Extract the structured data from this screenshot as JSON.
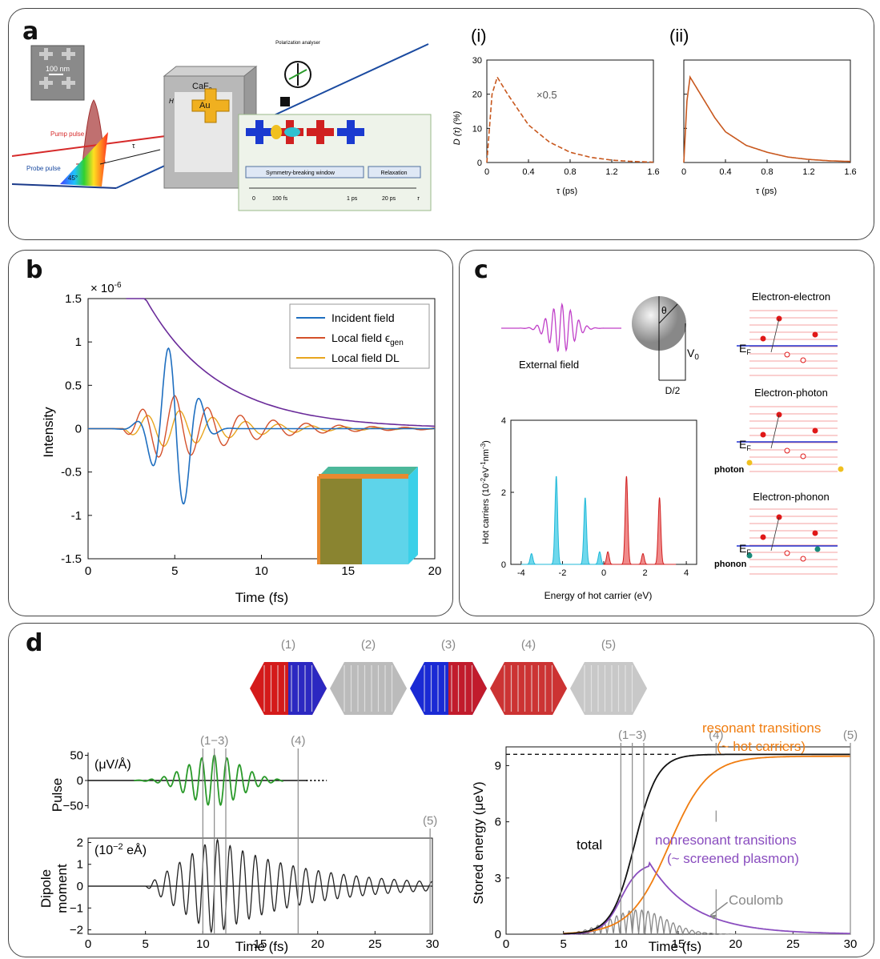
{
  "panels": {
    "a": "a",
    "b": "b",
    "c": "c",
    "d": "d"
  },
  "a": {
    "scale": "100 nm",
    "pump": "Pump pulse",
    "probe": "Probe pulse",
    "angle": "45°",
    "tau": "τ",
    "crystal": "CaF",
    "crystal_sub": "2",
    "au": "Au",
    "h": "H",
    "analyser": "Polarization analyser",
    "sym_window": "Symmetry-breaking window",
    "relaxation": "Relaxation",
    "timeline": [
      "0",
      "100 fs",
      "1 ps",
      "20 ps"
    ],
    "timeline_tau": "τ"
  },
  "a_plots": {
    "i_label": "(i)",
    "ii_label": "(ii)",
    "scale_note": "×0.5",
    "ylabel": "D (τ) (%)",
    "xlabel": "τ (ps)",
    "xticks": [
      "0",
      "0.4",
      "0.8",
      "1.2",
      "1.6"
    ],
    "yticks": [
      "0",
      "10",
      "20",
      "30"
    ]
  },
  "b": {
    "exponent": "× 10",
    "exponent_sup": "-6",
    "ylabel": "Intensity",
    "xlabel": "Time (fs)",
    "legend": [
      "Incident field",
      "Local field ϵ",
      "Local field DL"
    ],
    "legend_sub": "gen",
    "colors": {
      "incident": "#1f6fc0",
      "local_gen": "#d4502a",
      "local_dl": "#e8a51e",
      "envelope": "#6a2b9a"
    }
  },
  "c": {
    "external_field": "External field",
    "theta": "θ",
    "v0": "V",
    "v0_sub": "0",
    "d2": "D/2",
    "ylabel": "Hot carriers (10",
    "ylabel_sup": "-2",
    "ylabel_rest": "eV",
    "ylabel_sup2": "-1",
    "ylabel_rest2": "nm",
    "ylabel_sup3": "-3",
    "ylabel_end": ")",
    "xlabel": "Energy of hot carrier (eV)",
    "xticks": [
      "-4",
      "-2",
      "0",
      "2",
      "4"
    ],
    "yticks": [
      "0",
      "2",
      "4"
    ],
    "ee": "Electron-electron",
    "ep": "Electron-photon",
    "eph": "Electron-phonon",
    "ef": "E",
    "ef_sub": "F",
    "photon": "photon",
    "phonon": "phonon"
  },
  "d": {
    "states": [
      "(1)",
      "(2)",
      "(3)",
      "(4)",
      "(5)"
    ],
    "pulse_ylabel": "Pulse",
    "pulse_unit": "(μV/Å)",
    "pulse_ticks": [
      "50",
      "0",
      "−50"
    ],
    "dipole_ylabel_1": "Dipole",
    "dipole_ylabel_2": "moment",
    "dipole_unit_a": "(10",
    "dipole_unit_sup": "−2",
    "dipole_unit_b": " eÅ)",
    "dipole_ticks": [
      "2",
      "1",
      "0",
      "−1",
      "−2"
    ],
    "marker_13": "(1−3)",
    "marker_4": "(4)",
    "marker_5": "(5)",
    "xlabel": "Time (fs)",
    "xticks": [
      "0",
      "5",
      "10",
      "15",
      "20",
      "25",
      "30"
    ],
    "energy_ylabel": "Stored energy (μeV)",
    "energy_ticks": [
      "0",
      "3",
      "6",
      "9"
    ],
    "total": "total",
    "resonant_1": "resonant transitions",
    "resonant_2": "(~ hot carriers)",
    "nonresonant_1": "nonresonant transitions",
    "nonresonant_2": "(~ screened plasmon)",
    "coulomb": "Coulomb",
    "colors": {
      "pulse": "#2a9a2a",
      "resonant": "#f07d10",
      "nonresonant": "#8a4dbf",
      "coulomb": "#888888"
    }
  },
  "chart_data": [
    {
      "type": "line",
      "panel": "a(i)",
      "xlabel": "τ (ps)",
      "ylabel": "D (τ) (%)",
      "xlim": [
        0,
        1.6
      ],
      "ylim": [
        0,
        30
      ],
      "series": [
        {
          "values": [
            [
              0,
              0
            ],
            [
              0.05,
              20
            ],
            [
              0.1,
              25
            ],
            [
              0.2,
              20
            ],
            [
              0.4,
              11
            ],
            [
              0.6,
              6
            ],
            [
              0.8,
              3
            ],
            [
              1.0,
              1.5
            ],
            [
              1.2,
              0.7
            ],
            [
              1.4,
              0.3
            ],
            [
              1.6,
              0.1
            ]
          ]
        }
      ]
    },
    {
      "type": "line",
      "panel": "a(ii)",
      "xlabel": "τ (ps)",
      "xlim": [
        0,
        1.6
      ],
      "ylim": [
        0,
        30
      ],
      "series": [
        {
          "values": [
            [
              0,
              0
            ],
            [
              0.03,
              18
            ],
            [
              0.06,
              25
            ],
            [
              0.1,
              23
            ],
            [
              0.2,
              18
            ],
            [
              0.3,
              13
            ],
            [
              0.4,
              9
            ],
            [
              0.6,
              5
            ],
            [
              0.8,
              3
            ],
            [
              1.0,
              1.6
            ],
            [
              1.2,
              0.9
            ],
            [
              1.4,
              0.5
            ],
            [
              1.6,
              0.3
            ]
          ]
        }
      ]
    },
    {
      "type": "line",
      "panel": "b",
      "xlabel": "Time (fs)",
      "ylabel": "Intensity",
      "xlim": [
        0,
        20
      ],
      "ylim": [
        -1.5,
        1.5
      ],
      "series": [
        {
          "name": "Incident field"
        },
        {
          "name": "Local field ϵgen"
        },
        {
          "name": "Local field DL"
        }
      ]
    },
    {
      "type": "area",
      "panel": "c",
      "xlabel": "Energy of hot carrier (eV)",
      "xlim": [
        -4,
        4
      ],
      "ylim": [
        0,
        4
      ],
      "peaks": {
        "holes": [
          [
            -3.5,
            0.3
          ],
          [
            -2.3,
            2.45
          ],
          [
            -0.9,
            1.85
          ],
          [
            -0.2,
            0.35
          ]
        ],
        "electrons": [
          [
            0.2,
            0.35
          ],
          [
            1.1,
            2.45
          ],
          [
            1.9,
            0.3
          ],
          [
            2.7,
            1.85
          ]
        ]
      }
    },
    {
      "type": "line",
      "panel": "d-left",
      "xlabel": "Time (fs)",
      "xlim": [
        0,
        30
      ]
    },
    {
      "type": "line",
      "panel": "d-right",
      "xlabel": "Time (fs)",
      "ylabel": "Stored energy (μeV)",
      "xlim": [
        0,
        30
      ],
      "ylim": [
        0,
        10
      ],
      "series": [
        {
          "name": "total"
        },
        {
          "name": "resonant transitions"
        },
        {
          "name": "nonresonant transitions"
        },
        {
          "name": "Coulomb"
        }
      ]
    }
  ]
}
